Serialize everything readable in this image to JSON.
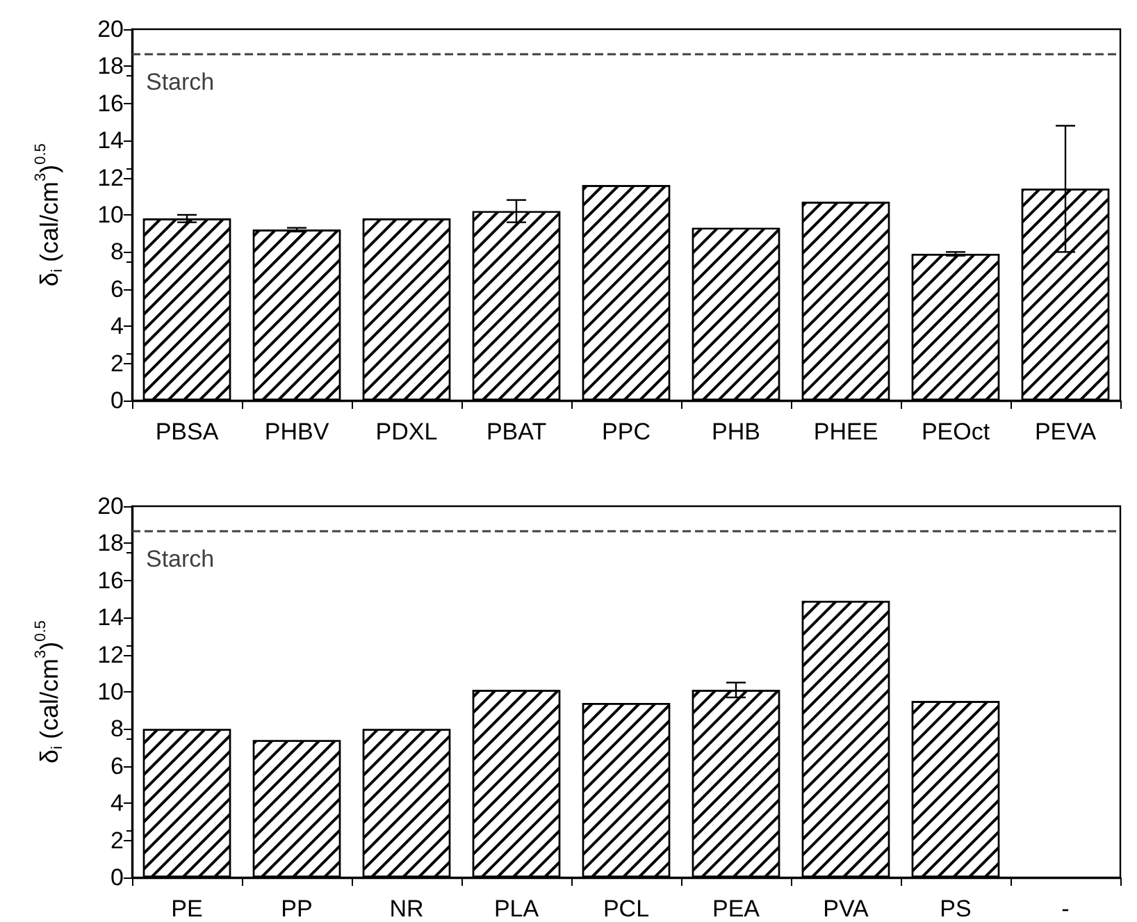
{
  "chart_data": [
    {
      "type": "bar",
      "categories": [
        "PBSA",
        "PHBV",
        "PDXL",
        "PBAT",
        "PPC",
        "PHB",
        "PHEE",
        "PEOct",
        "PEVA"
      ],
      "values": [
        9.8,
        9.2,
        9.8,
        10.2,
        11.6,
        9.3,
        10.7,
        7.9,
        11.4
      ],
      "errors": [
        0.2,
        0.1,
        null,
        0.6,
        null,
        null,
        null,
        0.1,
        3.4
      ],
      "color": "#ffffff",
      "ylabel": "δ$_{i}$ (cal/cm$^{3}$)$^{0.5}$",
      "ylim": [
        0,
        20
      ],
      "yticks": [
        0,
        2,
        4,
        6,
        8,
        10,
        12,
        14,
        16,
        18,
        20
      ],
      "ref_lines": [
        {
          "axis": "y",
          "value": 18.7,
          "label": "Starch",
          "color": "#404040",
          "line_style": "dashed"
        }
      ]
    },
    {
      "type": "bar",
      "categories": [
        "PE",
        "PP",
        "NR",
        "PLA",
        "PCL",
        "PEA",
        "PVA",
        "PS",
        "-"
      ],
      "values": [
        8.0,
        7.4,
        8.0,
        10.1,
        9.4,
        10.1,
        14.9,
        9.5,
        null
      ],
      "errors": [
        null,
        null,
        null,
        null,
        null,
        0.4,
        null,
        null,
        null
      ],
      "color": "#ffffff",
      "ylabel": "δ$_{i}$ (cal/cm$^{3}$)$^{0.5}$",
      "ylim": [
        0,
        20
      ],
      "yticks": [
        0,
        2,
        4,
        6,
        8,
        10,
        12,
        14,
        16,
        18,
        20
      ],
      "ref_lines": [
        {
          "axis": "y",
          "value": 18.7,
          "label": "Starch",
          "color": "#404040",
          "line_style": "dashed"
        }
      ]
    }
  ]
}
